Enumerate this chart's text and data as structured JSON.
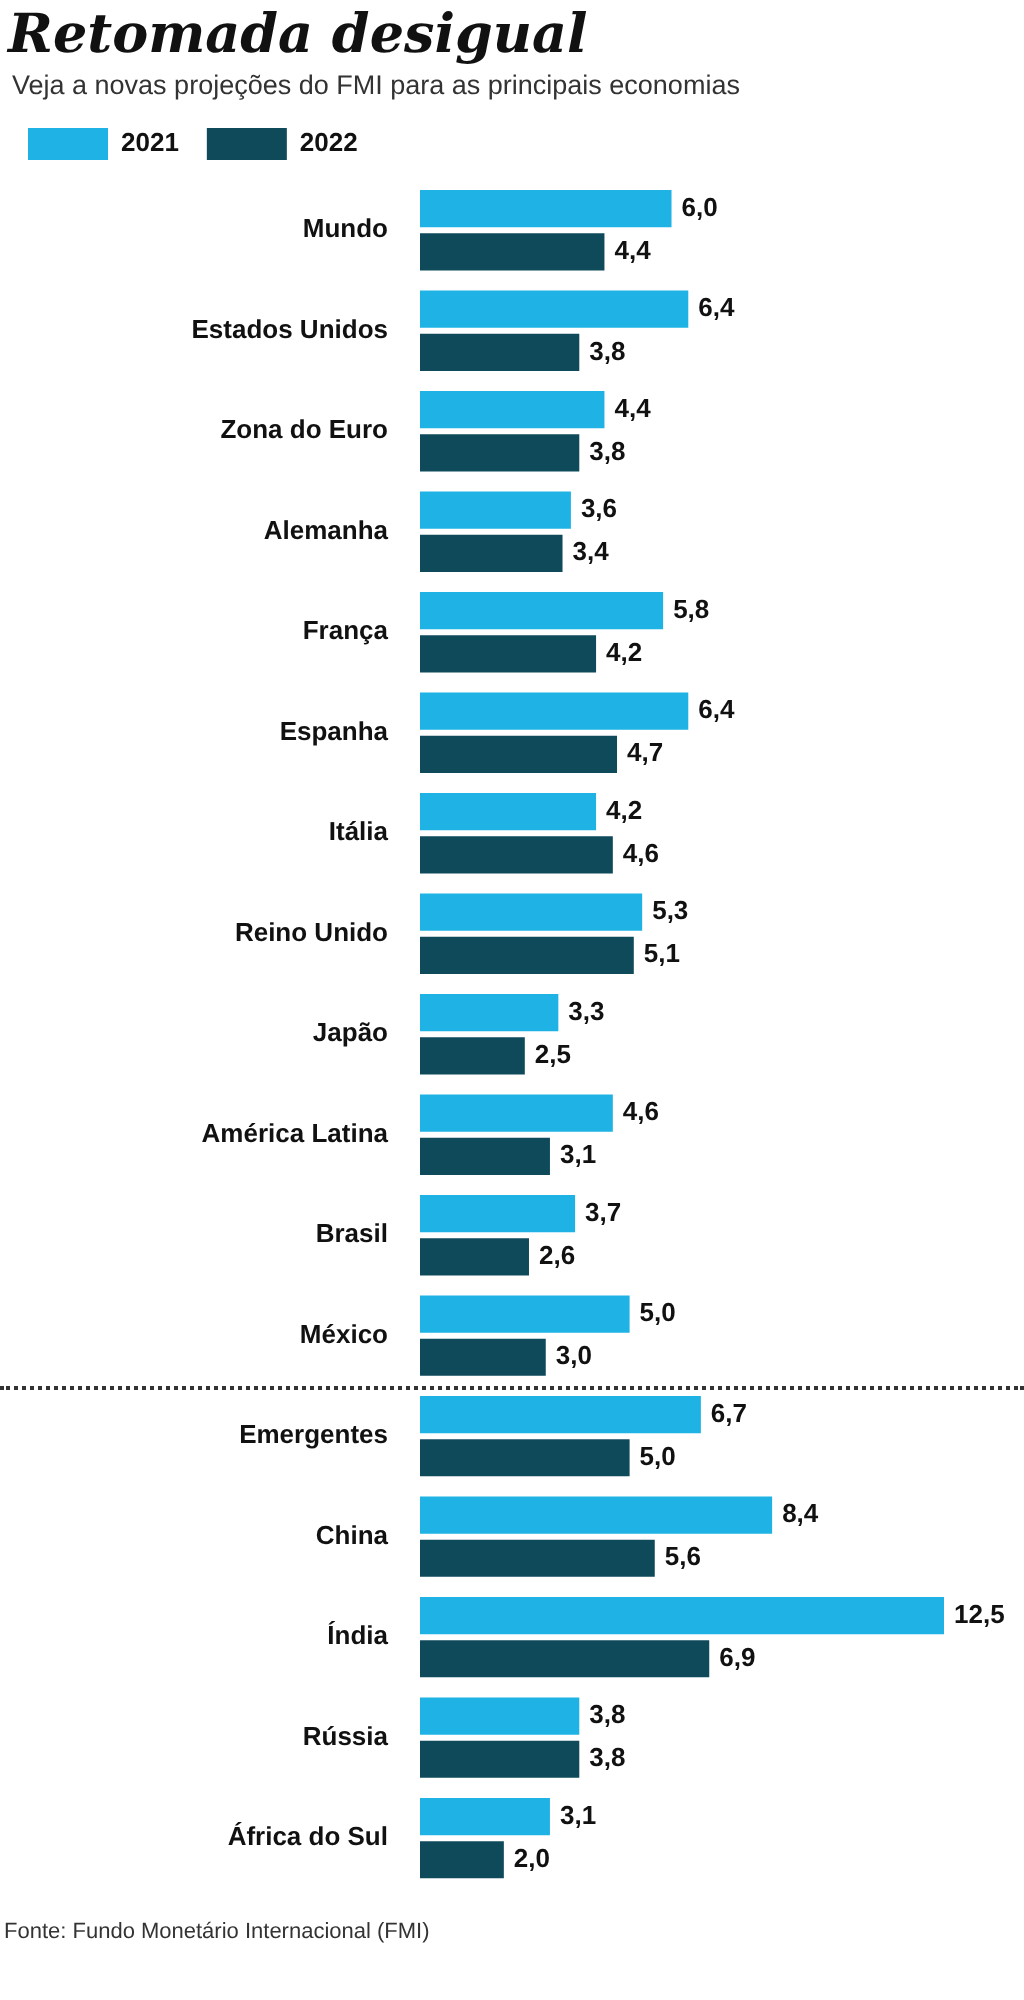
{
  "chart_data": {
    "type": "bar",
    "orientation": "horizontal",
    "title": "Retomada desigual",
    "subtitle": "Veja a novas projeções do FMI para as principais economias",
    "categories": [
      "Mundo",
      "Estados Unidos",
      "Zona do Euro",
      "Alemanha",
      "França",
      "Espanha",
      "Itália",
      "Reino Unido",
      "Japão",
      "América Latina",
      "Brasil",
      "México",
      "Emergentes",
      "China",
      "Índia",
      "Rússia",
      "África do Sul"
    ],
    "series": [
      {
        "name": "2021",
        "color": "#1fb3e5",
        "values": [
          6.0,
          6.4,
          4.4,
          3.6,
          5.8,
          6.4,
          4.2,
          5.3,
          3.3,
          4.6,
          3.7,
          5.0,
          6.7,
          8.4,
          12.5,
          3.8,
          3.1
        ],
        "value_labels": [
          "6,0",
          "6,4",
          "4,4",
          "3,6",
          "5,8",
          "6,4",
          "4,2",
          "5,3",
          "3,3",
          "4,6",
          "3,7",
          "5,0",
          "6,7",
          "8,4",
          "12,5",
          "3,8",
          "3,1"
        ]
      },
      {
        "name": "2022",
        "color": "#0e4a5a",
        "values": [
          4.4,
          3.8,
          3.8,
          3.4,
          4.2,
          4.7,
          4.6,
          5.1,
          2.5,
          3.1,
          2.6,
          3.0,
          5.0,
          5.6,
          6.9,
          3.8,
          2.0
        ],
        "value_labels": [
          "4,4",
          "3,8",
          "3,8",
          "3,4",
          "4,2",
          "4,7",
          "4,6",
          "5,1",
          "2,5",
          "3,1",
          "2,6",
          "3,0",
          "5,0",
          "5,6",
          "6,9",
          "3,8",
          "2,0"
        ]
      }
    ],
    "xlim": [
      0,
      12.5
    ],
    "tick_labels": "y",
    "legend": "top left",
    "annotations": [
      "Fonte: Fundo Monetário Internacional (FMI)"
    ]
  }
}
